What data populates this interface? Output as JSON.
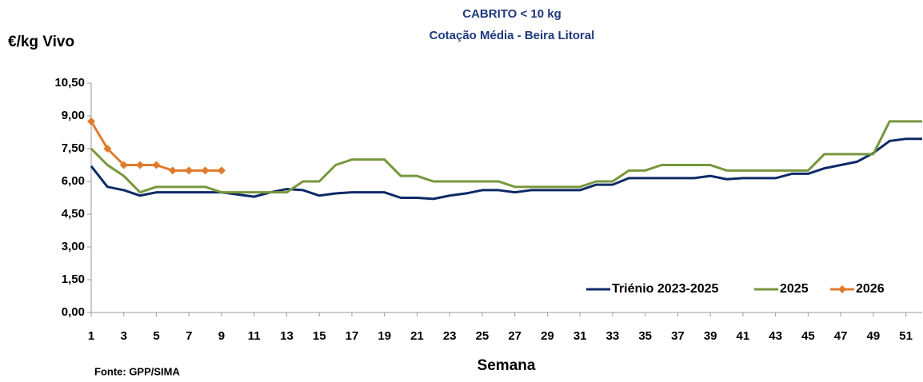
{
  "chart_data": {
    "type": "line",
    "title": "CABRITO < 10 kg",
    "subtitle": "Cotação Média - Beira Litoral",
    "y_label": "€/kg Vivo",
    "x_label": "Semana",
    "source": "Fonte: GPP/SIMA",
    "x": [
      1,
      2,
      3,
      4,
      5,
      6,
      7,
      8,
      9,
      10,
      11,
      12,
      13,
      14,
      15,
      16,
      17,
      18,
      19,
      20,
      21,
      22,
      23,
      24,
      25,
      26,
      27,
      28,
      29,
      30,
      31,
      32,
      33,
      34,
      35,
      36,
      37,
      38,
      39,
      40,
      41,
      42,
      43,
      44,
      45,
      46,
      47,
      48,
      49,
      50,
      51,
      52
    ],
    "xlim": [
      1,
      52
    ],
    "xticks": [
      1,
      3,
      5,
      7,
      9,
      11,
      13,
      15,
      17,
      19,
      21,
      23,
      25,
      27,
      29,
      31,
      33,
      35,
      37,
      39,
      41,
      43,
      45,
      47,
      49,
      51
    ],
    "ylim": [
      0,
      10.5
    ],
    "yticks": [
      {
        "value": 0,
        "label": "0,00"
      },
      {
        "value": 1.5,
        "label": "1,50"
      },
      {
        "value": 3,
        "label": "3,00"
      },
      {
        "value": 4.5,
        "label": "4,50"
      },
      {
        "value": 6,
        "label": "6,00"
      },
      {
        "value": 7.5,
        "label": "7,50"
      },
      {
        "value": 9,
        "label": "9,00"
      },
      {
        "value": 10.5,
        "label": "10,50"
      }
    ],
    "grid": false,
    "legend": "lower right",
    "series": [
      {
        "name": "Triénio 2023-2025",
        "color": "#0d2a66",
        "marker": false,
        "values": [
          6.7,
          5.75,
          5.6,
          5.35,
          5.5,
          5.5,
          5.5,
          5.5,
          5.5,
          5.4,
          5.3,
          5.5,
          5.65,
          5.6,
          5.35,
          5.45,
          5.5,
          5.5,
          5.5,
          5.25,
          5.25,
          5.2,
          5.35,
          5.45,
          5.6,
          5.6,
          5.5,
          5.6,
          5.6,
          5.6,
          5.6,
          5.85,
          5.85,
          6.15,
          6.15,
          6.15,
          6.15,
          6.15,
          6.25,
          6.1,
          6.15,
          6.15,
          6.15,
          6.35,
          6.35,
          6.6,
          6.75,
          6.9,
          7.3,
          7.85,
          7.95,
          7.95
        ]
      },
      {
        "name": "2025",
        "color": "#77973d",
        "marker": false,
        "values": [
          7.5,
          6.75,
          6.25,
          5.5,
          5.75,
          5.75,
          5.75,
          5.75,
          5.5,
          5.5,
          5.5,
          5.5,
          5.5,
          6.0,
          6.0,
          6.75,
          7.0,
          7.0,
          7.0,
          6.25,
          6.25,
          6.0,
          6.0,
          6.0,
          6.0,
          6.0,
          5.75,
          5.75,
          5.75,
          5.75,
          5.75,
          6.0,
          6.0,
          6.5,
          6.5,
          6.75,
          6.75,
          6.75,
          6.75,
          6.5,
          6.5,
          6.5,
          6.5,
          6.5,
          6.5,
          7.25,
          7.25,
          7.25,
          7.25,
          8.75,
          8.75,
          8.75
        ]
      },
      {
        "name": "2026",
        "color": "#e07b2c",
        "marker": true,
        "values": [
          8.75,
          7.5,
          6.75,
          6.75,
          6.75,
          6.5,
          6.5,
          6.5,
          6.5,
          null,
          null,
          null,
          null,
          null,
          null,
          null,
          null,
          null,
          null,
          null,
          null,
          null,
          null,
          null,
          null,
          null,
          null,
          null,
          null,
          null,
          null,
          null,
          null,
          null,
          null,
          null,
          null,
          null,
          null,
          null,
          null,
          null,
          null,
          null,
          null,
          null,
          null,
          null,
          null,
          null,
          null,
          null
        ]
      }
    ]
  }
}
